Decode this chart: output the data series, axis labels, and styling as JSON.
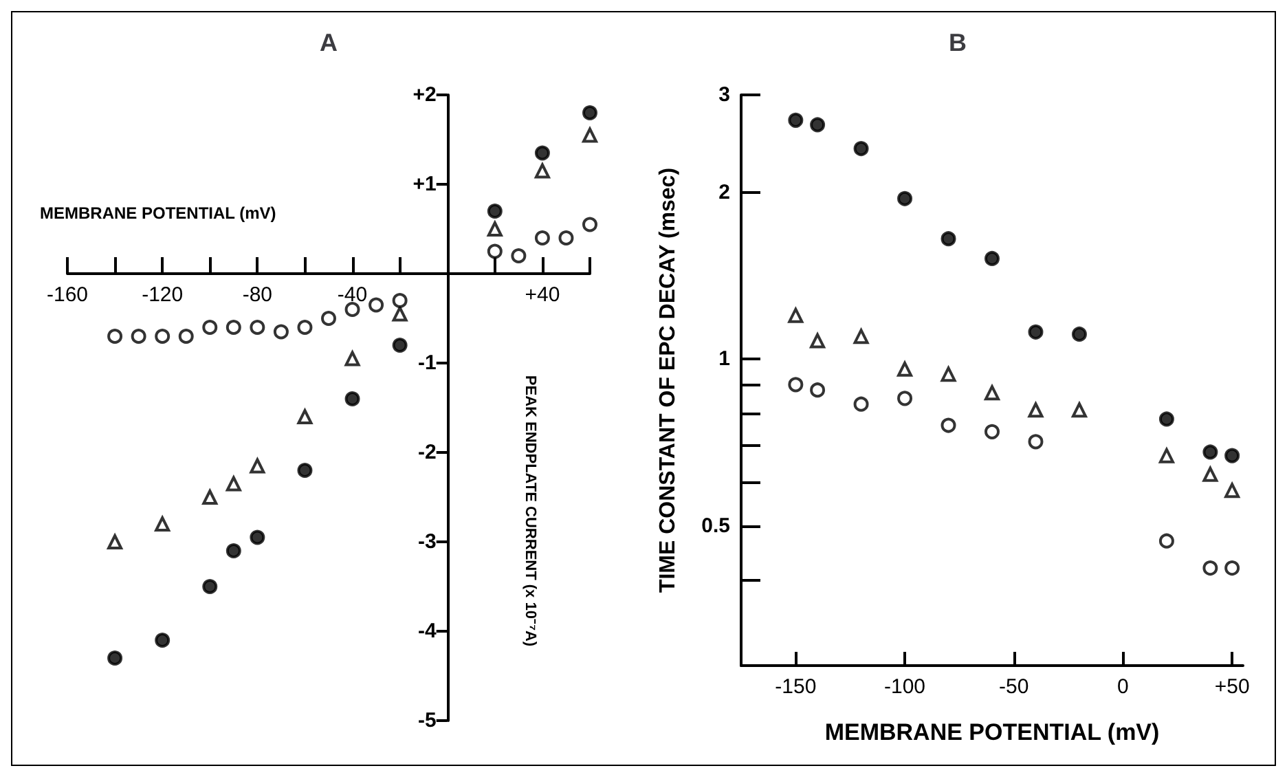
{
  "chart_data": [
    {
      "type": "scatter",
      "title": "A",
      "xlabel": "MEMBRANE POTENTIAL (mV)",
      "ylabel": "PEAK ENDPLATE CURRENT (x 10⁻⁷A)",
      "x": [
        -140,
        -130,
        -120,
        -110,
        -100,
        -90,
        -80,
        -70,
        -60,
        -50,
        -40,
        -30,
        -20,
        20,
        30,
        40,
        50,
        60
      ],
      "series": [
        {
          "color": "#000000",
          "marker": "circle",
          "values": [
            -4.3,
            null,
            -4.1,
            null,
            -3.5,
            -3.1,
            -2.95,
            null,
            -2.2,
            null,
            -1.4,
            null,
            -0.8,
            0.7,
            null,
            1.35,
            null,
            1.8
          ]
        },
        {
          "color": "#ffffff",
          "marker": "triangle",
          "values": [
            -3.0,
            null,
            -2.8,
            null,
            -2.5,
            -2.35,
            -2.15,
            null,
            -1.6,
            null,
            -0.95,
            null,
            -0.45,
            0.5,
            null,
            1.15,
            null,
            1.55
          ]
        },
        {
          "color": "#ffffff",
          "marker": "circle",
          "values": [
            -0.7,
            -0.7,
            -0.7,
            -0.7,
            -0.6,
            -0.6,
            -0.6,
            -0.65,
            -0.6,
            -0.5,
            -0.4,
            -0.35,
            -0.3,
            0.25,
            0.2,
            0.4,
            0.4,
            0.55
          ]
        }
      ],
      "xlim": [
        -160,
        60
      ],
      "xticks": [
        -160,
        {
          "value": -140,
          "label": null
        },
        -120,
        {
          "value": -100,
          "label": null
        },
        -80,
        {
          "value": -60,
          "label": null
        },
        -40,
        {
          "value": -20,
          "label": null
        },
        {
          "value": 20,
          "label": null
        },
        {
          "value": 40,
          "label": "+40"
        },
        {
          "value": 60,
          "label": null
        }
      ],
      "ylim": [
        -5,
        2
      ],
      "yticks": [
        -5,
        -4,
        -3,
        -2,
        -1,
        {
          "value": 1,
          "label": "+1"
        },
        {
          "value": 2,
          "label": "+2"
        }
      ],
      "grid": false
    },
    {
      "type": "scatter",
      "title": "B",
      "xlabel": "MEMBRANE POTENTIAL (mV)",
      "ylabel": "TIME CONSTANT OF EPC DECAY (msec)",
      "x": [
        -150,
        -140,
        -120,
        -100,
        -80,
        -60,
        -40,
        -20,
        20,
        40,
        50
      ],
      "series": [
        {
          "color": "#000000",
          "marker": "circle",
          "values": [
            2.7,
            2.65,
            2.4,
            1.95,
            1.65,
            1.52,
            1.12,
            1.11,
            0.78,
            0.68,
            0.67
          ]
        },
        {
          "color": "#ffffff",
          "marker": "triangle",
          "values": [
            1.2,
            1.08,
            1.1,
            0.96,
            0.94,
            0.87,
            0.81,
            0.81,
            0.67,
            0.62,
            0.58
          ]
        },
        {
          "color": "#ffffff",
          "marker": "circle",
          "values": [
            0.9,
            0.88,
            0.83,
            0.85,
            0.76,
            0.74,
            0.71,
            null,
            0.47,
            0.42,
            0.42
          ]
        }
      ],
      "log": "y",
      "xlim": [
        -175,
        55
      ],
      "xticks": [
        -150,
        -100,
        -50,
        0,
        {
          "value": 50,
          "label": "+50"
        }
      ],
      "ylim": [
        0.28,
        3
      ],
      "yticks": [
        {
          "value": 0.4,
          "label": null
        },
        0.5,
        {
          "value": 0.6,
          "label": null
        },
        {
          "value": 0.7,
          "label": null
        },
        {
          "value": 0.8,
          "label": null
        },
        {
          "value": 0.9,
          "label": null
        },
        1,
        2,
        3
      ],
      "grid": false
    }
  ]
}
